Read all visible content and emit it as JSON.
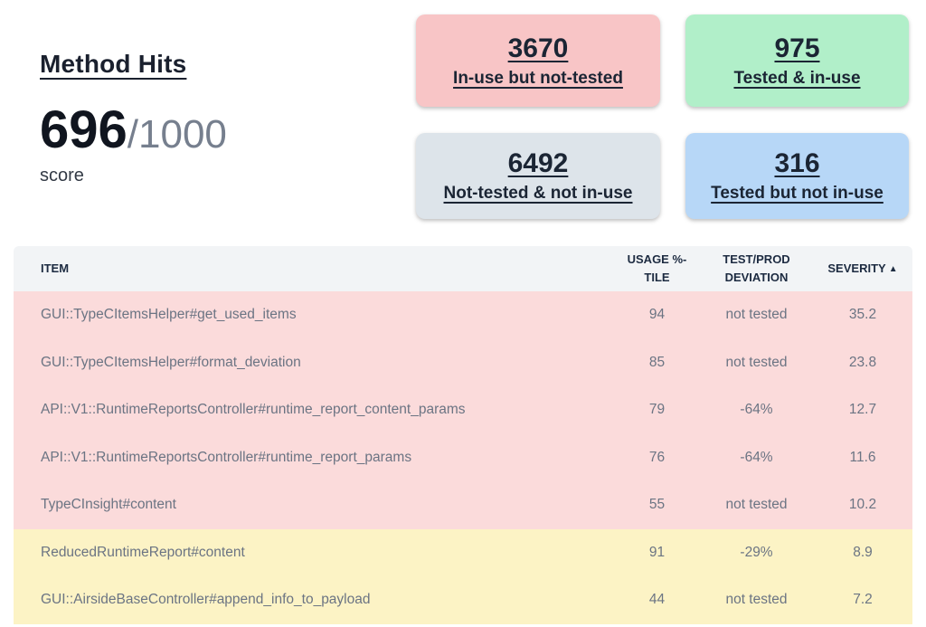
{
  "header": {
    "title": "Method Hits",
    "score": {
      "value": "696",
      "total": "/1000",
      "label": "score"
    }
  },
  "stats": [
    {
      "value": "3670",
      "label": "In-use but not-tested",
      "color_key": "card_red"
    },
    {
      "value": "975",
      "label": "Tested & in-use",
      "color_key": "card_green"
    },
    {
      "value": "6492",
      "label": "Not-tested & not in-use",
      "color_key": "card_gray"
    },
    {
      "value": "316",
      "label": "Tested but not in-use",
      "color_key": "card_blue"
    }
  ],
  "table": {
    "columns": {
      "item": {
        "label": "ITEM"
      },
      "usage": {
        "line1": "USAGE %-",
        "line2": "TILE"
      },
      "deviation": {
        "line1": "TEST/PROD",
        "line2": "DEVIATION"
      },
      "severity": {
        "label": "SEVERITY",
        "sort_indicator": "▲"
      }
    },
    "rows": [
      {
        "item": "GUI::TypeCItemsHelper#get_used_items",
        "usage": "94",
        "deviation": "not tested",
        "severity": "35.2",
        "tone": "red"
      },
      {
        "item": "GUI::TypeCItemsHelper#format_deviation",
        "usage": "85",
        "deviation": "not tested",
        "severity": "23.8",
        "tone": "red"
      },
      {
        "item": "API::V1::RuntimeReportsController#runtime_report_content_params",
        "usage": "79",
        "deviation": "-64%",
        "severity": "12.7",
        "tone": "red"
      },
      {
        "item": "API::V1::RuntimeReportsController#runtime_report_params",
        "usage": "76",
        "deviation": "-64%",
        "severity": "11.6",
        "tone": "red"
      },
      {
        "item": "TypeCInsight#content",
        "usage": "55",
        "deviation": "not tested",
        "severity": "10.2",
        "tone": "red"
      },
      {
        "item": "ReducedRuntimeReport#content",
        "usage": "91",
        "deviation": "-29%",
        "severity": "8.9",
        "tone": "yellow"
      },
      {
        "item": "GUI::AirsideBaseController#append_info_to_payload",
        "usage": "44",
        "deviation": "not tested",
        "severity": "7.2",
        "tone": "yellow"
      }
    ]
  },
  "colors": {
    "card_red": "#f8c5c6",
    "card_green": "#b1efc9",
    "card_gray": "#dde4ea",
    "card_blue": "#b7d7f7",
    "row_red": "#fbdbdb",
    "row_yellow": "#fcf3c5",
    "header_bg": "#f2f4f6"
  }
}
